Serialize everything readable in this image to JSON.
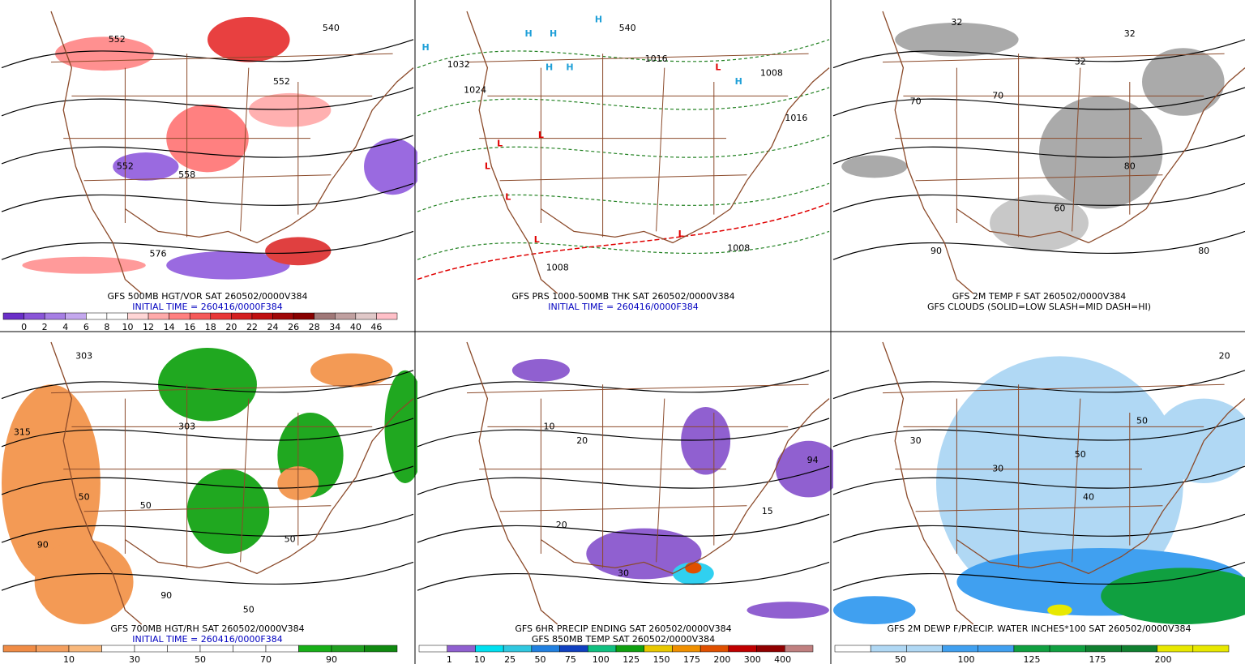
{
  "panels": [
    {
      "titles": [
        {
          "text": "GFS 500MB HGT/VOR SAT 260502/0000V384",
          "color": "#000000"
        },
        {
          "text": "INITIAL TIME = 260416/0000F384",
          "color": "#0000c0"
        }
      ],
      "map_labels": [
        "552",
        "552",
        "540",
        "552",
        "558",
        "576"
      ],
      "colorbar": {
        "labels": [
          0,
          2,
          4,
          6,
          8,
          10,
          12,
          14,
          16,
          18,
          20,
          22,
          24,
          26,
          28,
          34,
          40,
          46
        ],
        "colors": [
          "#6a2fc8",
          "#8a55d8",
          "#a67ee4",
          "#c4a8ee",
          "#ffffff",
          "#ffffff",
          "#ffd6d6",
          "#ffaaaa",
          "#ff8080",
          "#f55a5a",
          "#e83838",
          "#d42020",
          "#c01010",
          "#a00808",
          "#880000",
          "#a07878",
          "#c0a0a0",
          "#e0c8c8",
          "#ffc0c8"
        ]
      }
    },
    {
      "titles": [
        {
          "text": "GFS PRS 1000-500MB THK SAT 260502/0000V384",
          "color": "#000000"
        },
        {
          "text": "INITIAL TIME = 260416/0000F384",
          "color": "#0000c0"
        }
      ],
      "map_labels": [
        "H",
        "H",
        "H",
        "H",
        "H",
        "H",
        "H",
        "L",
        "L",
        "L",
        "L",
        "L",
        "L",
        "L",
        "1032",
        "1024",
        "1016",
        "1016",
        "1008",
        "1008",
        "1008",
        "540"
      ],
      "colorbar": {
        "labels": [],
        "colors": []
      }
    },
    {
      "titles": [
        {
          "text": "GFS 2M TEMP F SAT 260502/0000V384",
          "color": "#000000"
        },
        {
          "text": "GFS CLOUDS (SOLID=LOW SLASH=MID DASH=HI)",
          "color": "#000000"
        }
      ],
      "map_labels": [
        "32",
        "32",
        "32",
        "70",
        "70",
        "60",
        "80",
        "80",
        "90"
      ],
      "colorbar": {
        "labels": [],
        "colors": []
      }
    },
    {
      "titles": [
        {
          "text": "GFS 700MB HGT/RH SAT 260502/0000V384",
          "color": "#000000"
        },
        {
          "text": "INITIAL TIME = 260416/0000F384",
          "color": "#0000c0"
        }
      ],
      "map_labels": [
        "315",
        "303",
        "303",
        "50",
        "50",
        "50",
        "50",
        "90",
        "90"
      ],
      "colorbar": {
        "labels": [
          10,
          30,
          50,
          70,
          90
        ],
        "colors": [
          "#f08c46",
          "#f4a060",
          "#f8b87c",
          "#ffffff",
          "#ffffff",
          "#ffffff",
          "#ffffff",
          "#ffffff",
          "#ffffff",
          "#18b018",
          "#20a020",
          "#108a10"
        ]
      }
    },
    {
      "titles": [
        {
          "text": "GFS 6HR PRECIP ENDING SAT 260502/0000V384",
          "color": "#000000"
        },
        {
          "text": "GFS 850MB TEMP SAT 260502/0000V384",
          "color": "#000000"
        }
      ],
      "map_labels": [
        "10",
        "20",
        "20",
        "15",
        "94",
        "30"
      ],
      "colorbar": {
        "labels": [
          1,
          10,
          25,
          50,
          75,
          100,
          125,
          150,
          175,
          200,
          300,
          400
        ],
        "colors": [
          "#ffffff",
          "#9060d0",
          "#00e0f0",
          "#30c8e0",
          "#2080e0",
          "#1040c0",
          "#10c080",
          "#10a010",
          "#e8c800",
          "#f09000",
          "#e05000",
          "#c00000",
          "#900000",
          "#c08080"
        ]
      }
    },
    {
      "titles": [
        {
          "text": "GFS 2M DEWP F/PRECIP. WATER INCHES*100 SAT 260502/0000V384",
          "color": "#000000"
        }
      ],
      "map_labels": [
        "30",
        "30",
        "40",
        "50",
        "50",
        "20"
      ],
      "colorbar": {
        "labels": [
          50,
          100,
          125,
          175,
          200
        ],
        "colors": [
          "#ffffff",
          "#b0d8f4",
          "#b0d8f4",
          "#40a0f0",
          "#40a0f0",
          "#10a040",
          "#10a040",
          "#108030",
          "#108030",
          "#e8e800",
          "#e8e800"
        ]
      }
    }
  ]
}
